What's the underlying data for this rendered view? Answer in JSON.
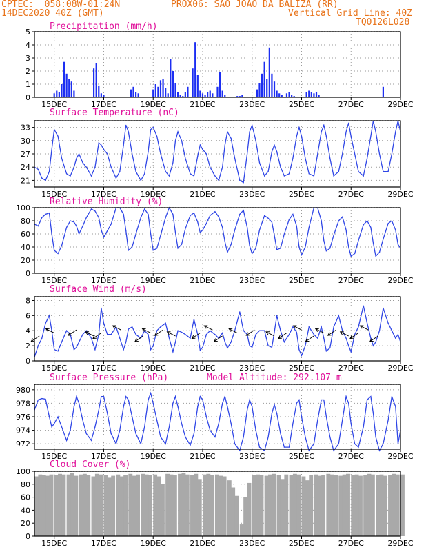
{
  "header": {
    "line1_left": "CPTEC:  058:08W-01:24N",
    "line1_right": "PROX06: SAO JOAO DA BALIZA (RR)",
    "line2_left": "14DEC2020 40Z (GMT)",
    "line2_right": "Vertical Grid Line: 40Z",
    "line3_right": "TQ0126L028"
  },
  "colors": {
    "header": "#e8731a",
    "title": "#e0109a",
    "line": "#2f46e6",
    "bar": "#1c2ef2",
    "cloud": "#a9a9a9",
    "grid": "#9a9a9a"
  },
  "x_axis": {
    "range": [
      14.2,
      29.0
    ],
    "ticks": [
      15,
      17,
      19,
      21,
      23,
      25,
      27,
      29
    ],
    "tick_labels": [
      "15DEC",
      "17DEC",
      "19DEC",
      "21DEC",
      "23DEC",
      "25DEC",
      "27DEC",
      "29DEC"
    ]
  },
  "chart_data": [
    {
      "type": "bar",
      "title": "Precipitation (mm/h)",
      "ylim": [
        0,
        5
      ],
      "yticks": [
        0,
        1,
        2,
        3,
        4,
        5
      ],
      "grid": true,
      "x": [
        15.0,
        15.1,
        15.2,
        15.3,
        15.4,
        15.5,
        15.6,
        15.7,
        15.8,
        16.6,
        16.7,
        16.8,
        16.9,
        17.0,
        18.1,
        18.2,
        18.3,
        18.4,
        19.0,
        19.1,
        19.2,
        19.3,
        19.4,
        19.5,
        19.6,
        19.7,
        19.8,
        19.9,
        20.0,
        20.1,
        20.2,
        20.3,
        20.4,
        20.6,
        20.7,
        20.8,
        20.9,
        21.0,
        21.1,
        21.2,
        21.3,
        21.4,
        21.6,
        21.7,
        21.8,
        21.9,
        22.4,
        22.5,
        22.6,
        23.2,
        23.3,
        23.4,
        23.5,
        23.6,
        23.7,
        23.8,
        23.9,
        24.0,
        24.1,
        24.2,
        24.4,
        24.5,
        24.6,
        24.7,
        25.2,
        25.3,
        25.4,
        25.5,
        25.6,
        25.7,
        28.3
      ],
      "values": [
        0.3,
        0.5,
        0.4,
        1.0,
        2.7,
        1.8,
        1.4,
        1.2,
        0.5,
        2.2,
        2.6,
        0.9,
        0.3,
        0.2,
        0.6,
        0.8,
        0.4,
        0.3,
        0.6,
        1.0,
        0.8,
        1.3,
        1.4,
        0.7,
        0.3,
        2.9,
        2.0,
        1.1,
        0.4,
        0.2,
        0.1,
        0.4,
        0.8,
        2.2,
        4.2,
        1.7,
        0.5,
        0.3,
        0.2,
        0.4,
        0.5,
        0.3,
        0.8,
        1.9,
        0.5,
        0.2,
        0.1,
        0.1,
        0.2,
        0.6,
        1.1,
        1.8,
        2.7,
        1.4,
        3.8,
        1.8,
        1.2,
        0.5,
        0.3,
        0.2,
        0.3,
        0.4,
        0.2,
        0.1,
        0.4,
        0.5,
        0.4,
        0.3,
        0.4,
        0.2,
        0.8
      ]
    },
    {
      "type": "line",
      "title": "Surface Temperature (nC)",
      "ylim": [
        19.5,
        34.5
      ],
      "yticks": [
        21,
        24,
        27,
        30,
        33
      ],
      "grid": true,
      "x": [
        14.2,
        14.35,
        14.5,
        14.65,
        14.8,
        14.9,
        15.0,
        15.15,
        15.3,
        15.5,
        15.65,
        15.8,
        15.9,
        16.0,
        16.15,
        16.3,
        16.5,
        16.65,
        16.8,
        16.9,
        17.0,
        17.15,
        17.3,
        17.5,
        17.65,
        17.8,
        17.9,
        18.0,
        18.15,
        18.3,
        18.5,
        18.65,
        18.8,
        18.9,
        19.0,
        19.15,
        19.3,
        19.5,
        19.65,
        19.8,
        19.9,
        20.0,
        20.15,
        20.3,
        20.5,
        20.65,
        20.8,
        20.9,
        21.0,
        21.15,
        21.3,
        21.5,
        21.65,
        21.8,
        21.9,
        22.0,
        22.15,
        22.3,
        22.5,
        22.65,
        22.8,
        22.9,
        23.0,
        23.15,
        23.3,
        23.5,
        23.65,
        23.8,
        23.9,
        24.0,
        24.15,
        24.3,
        24.5,
        24.65,
        24.8,
        24.9,
        25.0,
        25.15,
        25.3,
        25.5,
        25.65,
        25.8,
        25.9,
        26.0,
        26.15,
        26.3,
        26.5,
        26.65,
        26.8,
        26.9,
        27.0,
        27.15,
        27.3,
        27.5,
        27.65,
        27.8,
        27.9,
        28.0,
        28.15,
        28.3,
        28.5,
        28.65,
        28.8,
        28.9,
        29.0
      ],
      "values": [
        24,
        23.5,
        21.5,
        21,
        23,
        28,
        32.5,
        31,
        26,
        22.5,
        22,
        24,
        26,
        27,
        25,
        24,
        22,
        24,
        29.5,
        29,
        28,
        27,
        24,
        21.5,
        23,
        29,
        33.5,
        32,
        27,
        23,
        21,
        22.5,
        27.5,
        32.5,
        33,
        31,
        27,
        23,
        22,
        25,
        30,
        32,
        30,
        26,
        22.5,
        22,
        26.5,
        29,
        28,
        27,
        24,
        22,
        21,
        24,
        29,
        32,
        30.5,
        26,
        21,
        20.5,
        27,
        32,
        33.5,
        30,
        25,
        22,
        23,
        27.5,
        29,
        27.5,
        24,
        22,
        22.5,
        26,
        31,
        33,
        31,
        26,
        22.5,
        22,
        27,
        32,
        33.5,
        31,
        26,
        22,
        23,
        27,
        32,
        34,
        31,
        27,
        23,
        22,
        26,
        31,
        34.5,
        32,
        27,
        23,
        23,
        27,
        32,
        34.5,
        32
      ]
    },
    {
      "type": "line",
      "title": "Relative Humidity (%)",
      "ylim": [
        0,
        100
      ],
      "yticks": [
        0,
        20,
        40,
        60,
        80,
        100
      ],
      "grid": true,
      "x": [
        14.2,
        14.35,
        14.5,
        14.65,
        14.8,
        14.9,
        15.0,
        15.15,
        15.3,
        15.5,
        15.65,
        15.8,
        15.9,
        16.0,
        16.15,
        16.3,
        16.5,
        16.65,
        16.8,
        16.9,
        17.0,
        17.15,
        17.3,
        17.5,
        17.65,
        17.8,
        17.9,
        18.0,
        18.15,
        18.3,
        18.5,
        18.65,
        18.8,
        18.9,
        19.0,
        19.15,
        19.3,
        19.5,
        19.65,
        19.8,
        19.9,
        20.0,
        20.15,
        20.3,
        20.5,
        20.65,
        20.8,
        20.9,
        21.0,
        21.15,
        21.3,
        21.5,
        21.65,
        21.8,
        21.9,
        22.0,
        22.15,
        22.3,
        22.5,
        22.65,
        22.8,
        22.9,
        23.0,
        23.15,
        23.3,
        23.5,
        23.65,
        23.8,
        23.9,
        24.0,
        24.15,
        24.3,
        24.5,
        24.65,
        24.8,
        24.9,
        25.0,
        25.15,
        25.3,
        25.5,
        25.65,
        25.8,
        25.9,
        26.0,
        26.15,
        26.3,
        26.5,
        26.65,
        26.8,
        26.9,
        27.0,
        27.15,
        27.3,
        27.5,
        27.65,
        27.8,
        27.9,
        28.0,
        28.15,
        28.3,
        28.5,
        28.65,
        28.8,
        28.9,
        29.0
      ],
      "values": [
        75,
        72,
        85,
        90,
        92,
        60,
        35,
        30,
        42,
        70,
        80,
        78,
        72,
        60,
        72,
        85,
        98,
        95,
        85,
        66,
        55,
        65,
        75,
        100,
        100,
        90,
        65,
        35,
        40,
        60,
        85,
        98,
        90,
        60,
        35,
        38,
        58,
        85,
        100,
        90,
        62,
        38,
        44,
        68,
        88,
        92,
        78,
        62,
        66,
        76,
        88,
        94,
        86,
        70,
        48,
        32,
        44,
        66,
        90,
        96,
        70,
        42,
        30,
        38,
        66,
        88,
        84,
        78,
        58,
        36,
        38,
        60,
        82,
        90,
        72,
        40,
        28,
        40,
        70,
        100,
        100,
        80,
        50,
        34,
        38,
        58,
        80,
        86,
        66,
        40,
        26,
        30,
        50,
        74,
        80,
        70,
        46,
        26,
        32,
        52,
        76,
        80,
        66,
        44,
        38
      ]
    },
    {
      "type": "line",
      "title": "Surface Wind (m/s)",
      "ylim": [
        0,
        8.5
      ],
      "yticks": [
        0,
        2,
        4,
        6,
        8
      ],
      "grid": true,
      "x": [
        14.2,
        14.35,
        14.5,
        14.65,
        14.8,
        14.9,
        15.0,
        15.15,
        15.3,
        15.5,
        15.65,
        15.8,
        15.9,
        16.0,
        16.15,
        16.3,
        16.5,
        16.65,
        16.8,
        16.9,
        17.0,
        17.15,
        17.3,
        17.5,
        17.65,
        17.8,
        17.9,
        18.0,
        18.15,
        18.3,
        18.5,
        18.65,
        18.8,
        18.9,
        19.0,
        19.15,
        19.3,
        19.5,
        19.65,
        19.8,
        19.9,
        20.0,
        20.15,
        20.3,
        20.5,
        20.65,
        20.8,
        20.9,
        21.0,
        21.15,
        21.3,
        21.5,
        21.65,
        21.8,
        21.9,
        22.0,
        22.15,
        22.3,
        22.5,
        22.65,
        22.8,
        22.9,
        23.0,
        23.15,
        23.3,
        23.5,
        23.65,
        23.8,
        23.9,
        24.0,
        24.15,
        24.3,
        24.5,
        24.65,
        24.8,
        24.9,
        25.0,
        25.15,
        25.3,
        25.5,
        25.65,
        25.8,
        25.9,
        26.0,
        26.15,
        26.3,
        26.5,
        26.65,
        26.8,
        26.9,
        27.0,
        27.15,
        27.3,
        27.5,
        27.65,
        27.8,
        27.9,
        28.0,
        28.15,
        28.3,
        28.5,
        28.65,
        28.8,
        28.9,
        29.0
      ],
      "values": [
        0.5,
        2,
        3,
        5,
        6,
        4,
        1.5,
        1.3,
        2.5,
        4,
        3.5,
        1.5,
        1.8,
        2.5,
        3.5,
        4,
        3,
        1.5,
        3.5,
        7,
        5,
        3.5,
        3.5,
        4.5,
        3,
        1.5,
        2.5,
        4.2,
        4.5,
        3.5,
        3,
        4,
        3.5,
        1.5,
        2,
        4,
        4.5,
        5,
        3,
        1.2,
        2.5,
        4,
        3.8,
        3.5,
        3,
        5.5,
        3.5,
        1.4,
        1.8,
        3.5,
        4,
        3.5,
        3,
        3.7,
        2.5,
        1.7,
        2.5,
        4,
        6.5,
        4,
        3.5,
        2,
        1.8,
        3.5,
        4,
        4,
        2,
        1.8,
        3.8,
        6,
        4,
        2.5,
        3.5,
        4.5,
        3.8,
        1.5,
        0.7,
        2,
        4.5,
        3.5,
        3,
        4.5,
        3,
        1.3,
        1.7,
        4.5,
        6,
        4,
        3,
        2,
        1.2,
        3.5,
        4.5,
        7.3,
        5,
        3,
        2,
        2.5,
        4,
        7,
        5,
        4,
        3,
        3.5,
        2.5
      ]
    },
    {
      "type": "line",
      "title": "Surface Pressure (hPa)",
      "annotation": "Model Altitude: 292.107 m",
      "ylim": [
        971.2,
        980.8
      ],
      "yticks": [
        972,
        974,
        976,
        978,
        980
      ],
      "grid": true,
      "x": [
        14.2,
        14.35,
        14.5,
        14.65,
        14.8,
        14.9,
        15.0,
        15.15,
        15.3,
        15.5,
        15.65,
        15.8,
        15.9,
        16.0,
        16.15,
        16.3,
        16.5,
        16.65,
        16.8,
        16.9,
        17.0,
        17.15,
        17.3,
        17.5,
        17.65,
        17.8,
        17.9,
        18.0,
        18.15,
        18.3,
        18.5,
        18.65,
        18.8,
        18.9,
        19.0,
        19.15,
        19.3,
        19.5,
        19.65,
        19.8,
        19.9,
        20.0,
        20.15,
        20.3,
        20.5,
        20.65,
        20.8,
        20.9,
        21.0,
        21.15,
        21.3,
        21.5,
        21.65,
        21.8,
        21.9,
        22.0,
        22.15,
        22.3,
        22.5,
        22.65,
        22.8,
        22.9,
        23.0,
        23.15,
        23.3,
        23.5,
        23.65,
        23.8,
        23.9,
        24.0,
        24.15,
        24.3,
        24.5,
        24.65,
        24.8,
        24.9,
        25.0,
        25.15,
        25.3,
        25.5,
        25.65,
        25.8,
        25.9,
        26.0,
        26.15,
        26.3,
        26.5,
        26.65,
        26.8,
        26.9,
        27.0,
        27.15,
        27.3,
        27.5,
        27.65,
        27.8,
        27.9,
        28.0,
        28.15,
        28.3,
        28.5,
        28.65,
        28.8,
        28.9,
        29.0
      ],
      "values": [
        977,
        978.5,
        978.7,
        978.6,
        976,
        974.5,
        975,
        976,
        974.5,
        972.5,
        974,
        977.5,
        979,
        978,
        975.5,
        973.5,
        972.5,
        974.5,
        977,
        979,
        979,
        976.5,
        973.5,
        972,
        974,
        977.5,
        979,
        978.5,
        976,
        973.5,
        972,
        974.5,
        978.5,
        979.5,
        978,
        975.5,
        973,
        972,
        974.5,
        978,
        979,
        977.5,
        975,
        973,
        971.8,
        973.5,
        977.5,
        979,
        978.5,
        976,
        974,
        973,
        975,
        978,
        979,
        977.5,
        975,
        972,
        971,
        973,
        977,
        978.5,
        977.5,
        974,
        971.5,
        971,
        973,
        976.5,
        977.8,
        976.5,
        973.5,
        971.5,
        971.5,
        975,
        978,
        978.5,
        976,
        973,
        971,
        972,
        975.5,
        978.5,
        978.5,
        976,
        973,
        971,
        972,
        975.5,
        979,
        978,
        975,
        972,
        971.5,
        974.5,
        978.5,
        979,
        976.5,
        973,
        971,
        972,
        975.5,
        979,
        977.5,
        972,
        974
      ]
    },
    {
      "type": "bar",
      "title": "Cloud Cover (%)",
      "ylim": [
        0,
        100
      ],
      "yticks": [
        0,
        20,
        40,
        60,
        80,
        100
      ],
      "grid": true,
      "x": [
        14.2,
        14.35,
        14.5,
        14.65,
        14.8,
        15.0,
        15.15,
        15.3,
        15.5,
        15.65,
        15.8,
        16.0,
        16.15,
        16.3,
        16.5,
        16.65,
        16.8,
        17.0,
        17.15,
        17.3,
        17.5,
        17.65,
        17.8,
        18.0,
        18.15,
        18.3,
        18.5,
        18.65,
        18.8,
        19.0,
        19.15,
        19.3,
        19.5,
        19.65,
        19.8,
        20.0,
        20.15,
        20.3,
        20.5,
        20.65,
        20.8,
        21.0,
        21.15,
        21.3,
        21.5,
        21.65,
        21.8,
        22.0,
        22.15,
        22.3,
        22.5,
        22.65,
        22.8,
        23.0,
        23.15,
        23.3,
        23.5,
        23.65,
        23.8,
        24.0,
        24.15,
        24.3,
        24.5,
        24.65,
        24.8,
        25.0,
        25.15,
        25.3,
        25.5,
        25.65,
        25.8,
        26.0,
        26.15,
        26.3,
        26.5,
        26.65,
        26.8,
        27.0,
        27.15,
        27.3,
        27.5,
        27.65,
        27.8,
        28.0,
        28.15,
        28.3,
        28.5,
        28.65,
        28.8,
        29.0
      ],
      "values": [
        92,
        95,
        94,
        93,
        95,
        94,
        96,
        95,
        95,
        97,
        93,
        95,
        96,
        94,
        92,
        96,
        95,
        94,
        90,
        93,
        95,
        92,
        94,
        96,
        93,
        95,
        96,
        95,
        94,
        95,
        92,
        80,
        96,
        95,
        94,
        96,
        97,
        95,
        94,
        96,
        88,
        95,
        96,
        94,
        95,
        93,
        92,
        86,
        75,
        62,
        18,
        60,
        82,
        94,
        95,
        94,
        93,
        95,
        96,
        94,
        88,
        95,
        94,
        96,
        95,
        92,
        86,
        94,
        95,
        93,
        94,
        96,
        95,
        94,
        93,
        95,
        96,
        94,
        95,
        93,
        94,
        96,
        95,
        94,
        95,
        93,
        94,
        96,
        95,
        95
      ]
    }
  ],
  "wind_arrows": [
    {
      "x": 14.5,
      "label": "arrow"
    }
  ]
}
